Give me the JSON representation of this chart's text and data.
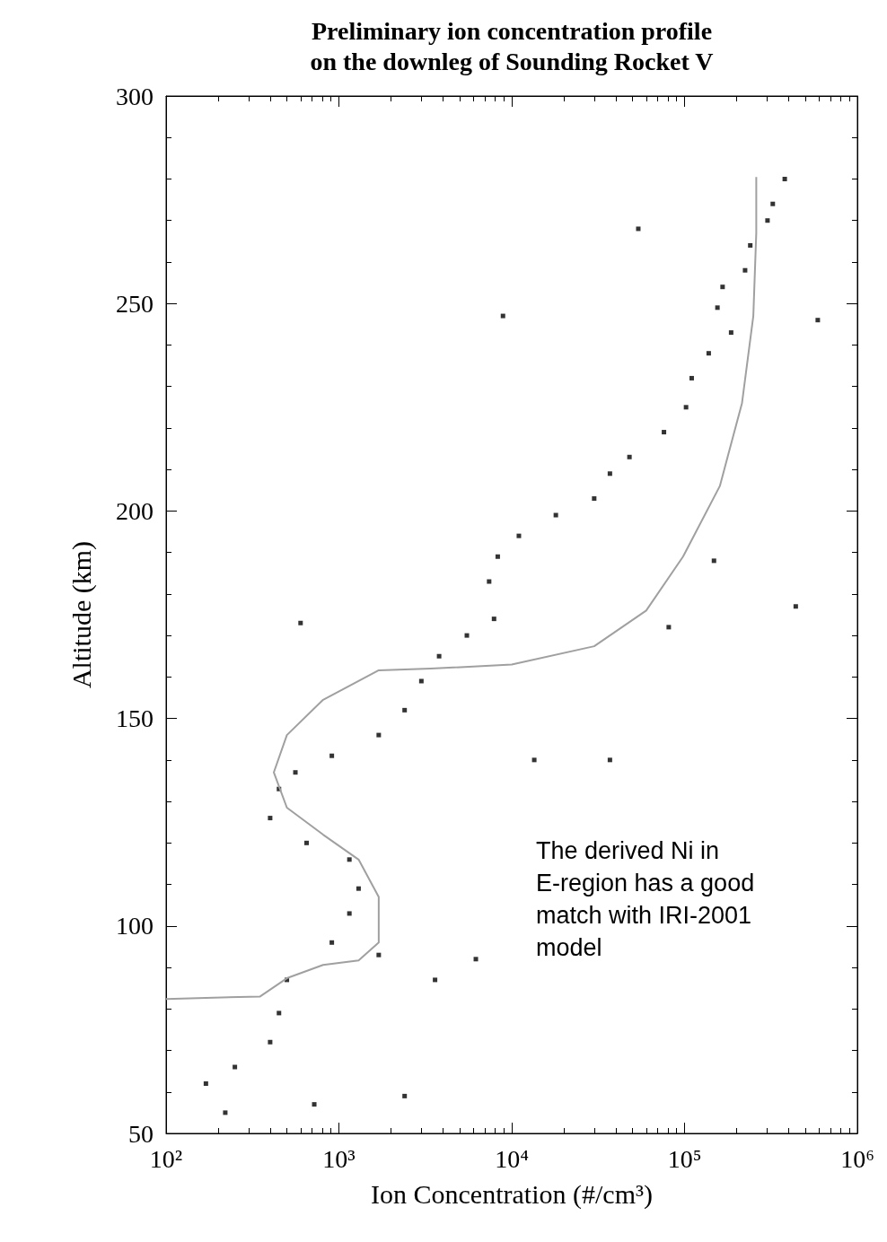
{
  "chart_data": {
    "type": "scatter",
    "title": "Preliminary ion concentration profile\non the downleg of Sounding Rocket V",
    "xlabel": "Ion Concentration (#/cm³)",
    "ylabel": "Altitude (km)",
    "log": "x",
    "xlim": [
      100,
      1000000
    ],
    "xticks": [
      {
        "value": 100,
        "label": "10²"
      },
      {
        "value": 1000,
        "label": "10³"
      },
      {
        "value": 10000,
        "label": "10⁴"
      },
      {
        "value": 100000,
        "label": "10⁵"
      },
      {
        "value": 1000000,
        "label": "10⁶"
      }
    ],
    "ylim": [
      50,
      300
    ],
    "yticks": [
      50,
      100,
      150,
      200,
      250,
      300
    ],
    "grid": false,
    "marker": "square",
    "annotations": [
      "The derived Ni in E-region has a good match with IRI-2001 model"
    ],
    "series": [
      {
        "color": "#000000",
        "x": [
          380000,
          324000,
          302000,
          240000,
          224000,
          166000,
          155000,
          186000,
          138000,
          110000,
          102000,
          76000,
          48000,
          37000,
          30000,
          18000,
          11000,
          8300,
          7400,
          7900,
          5500,
          3800,
          3000,
          2400,
          1700,
          910,
          560,
          450,
          400,
          650,
          1150,
          1300,
          1150,
          910,
          1700,
          6200,
          500,
          450,
          400,
          250,
          170,
          220,
          720,
          2400,
          54000,
          8900,
          590000,
          148000,
          600,
          440000,
          81000,
          13500,
          37000,
          3600
        ],
        "values": [
          280,
          274,
          270,
          264,
          258,
          254,
          249,
          243,
          238,
          232,
          225,
          219,
          213,
          209,
          203,
          199,
          194,
          189,
          183,
          174,
          170,
          165,
          159,
          152,
          146,
          141,
          137,
          133,
          126,
          120,
          116,
          109,
          103,
          96,
          93,
          92,
          87,
          79,
          72,
          66,
          62,
          55,
          57,
          59,
          268,
          247,
          246,
          188,
          173,
          177,
          172,
          140,
          140,
          87
        ]
      },
      {
        "type": "line",
        "color": "#a0a0a0",
        "marker": "none",
        "x": [
          100,
          350,
          500,
          810,
          1300,
          1700,
          1700,
          1300,
          810,
          500,
          420,
          500,
          810,
          1700,
          3400,
          10000,
          30000,
          60000,
          98000,
          160000,
          215000,
          250000,
          260000,
          260000
        ],
        "values": [
          82.4,
          83,
          87.4,
          90.6,
          91.7,
          96,
          107,
          116,
          122,
          128.5,
          137,
          146,
          154.5,
          161.6,
          162,
          163,
          167.4,
          176,
          189,
          206,
          226,
          247,
          267,
          280.5
        ]
      }
    ]
  }
}
